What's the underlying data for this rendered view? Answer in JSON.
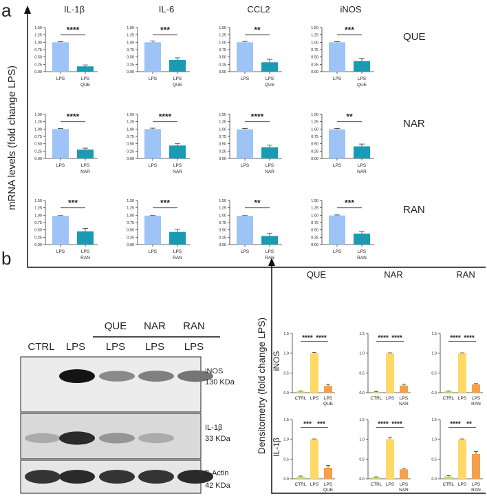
{
  "panel_a": {
    "label": "a",
    "ylabel": "mRNA levels  (fold change LPS)",
    "columns": [
      "IL-1β",
      "IL-6",
      "CCL2",
      "iNOS"
    ],
    "rows": [
      "QUE",
      "NAR",
      "RAN"
    ],
    "yticks": [
      "0.00",
      "0.25",
      "0.50",
      "0.75",
      "1.00",
      "1.25",
      "1.50"
    ]
  },
  "panel_b": {
    "label": "b",
    "blot": {
      "top_labels": [
        "QUE",
        "NAR",
        "RAN"
      ],
      "lane_labels": [
        "CTRL",
        "LPS",
        "LPS",
        "LPS",
        "LPS"
      ],
      "bands": [
        {
          "name": "iNOS",
          "size": "130 KDa"
        },
        {
          "name": "IL-1β",
          "size": "33 KDa"
        },
        {
          "name": "β-Actin",
          "size": "42 KDa"
        }
      ]
    },
    "ylabel": "Densitometry (fold change LPS)",
    "columns": [
      "QUE",
      "NAR",
      "RAN"
    ],
    "rows": [
      "iNOS",
      "IL-1β"
    ],
    "yticks": [
      "0.0",
      "0.5",
      "1.0",
      "1.5"
    ]
  },
  "chart_data": [
    {
      "type": "bar",
      "panel": "a",
      "ylim": [
        0,
        1.5
      ],
      "colors": {
        "LPS": "#9dc3f7",
        "treated": "#1a9bb3"
      },
      "charts": [
        {
          "gene": "IL-1β",
          "treatment": "QUE",
          "categories": [
            "LPS",
            "LPS QUE"
          ],
          "values": [
            1.0,
            0.18
          ],
          "errors": [
            0.02,
            0.05
          ],
          "sig": "****"
        },
        {
          "gene": "IL-6",
          "treatment": "QUE",
          "categories": [
            "LPS",
            "LPS QUE"
          ],
          "values": [
            1.0,
            0.4
          ],
          "errors": [
            0.04,
            0.07
          ],
          "sig": "***"
        },
        {
          "gene": "CCL2",
          "treatment": "QUE",
          "categories": [
            "LPS",
            "LPS QUE"
          ],
          "values": [
            1.0,
            0.32
          ],
          "errors": [
            0.03,
            0.1
          ],
          "sig": "**"
        },
        {
          "gene": "iNOS",
          "treatment": "QUE",
          "categories": [
            "LPS",
            "LPS QUE"
          ],
          "values": [
            1.0,
            0.36
          ],
          "errors": [
            0.02,
            0.09
          ],
          "sig": "***"
        },
        {
          "gene": "IL-1β",
          "treatment": "NAR",
          "categories": [
            "LPS",
            "LPS NAR"
          ],
          "values": [
            1.0,
            0.3
          ],
          "errors": [
            0.02,
            0.05
          ],
          "sig": "****"
        },
        {
          "gene": "IL-6",
          "treatment": "NAR",
          "categories": [
            "LPS",
            "LPS NAR"
          ],
          "values": [
            1.0,
            0.44
          ],
          "errors": [
            0.03,
            0.07
          ],
          "sig": "****"
        },
        {
          "gene": "CCL2",
          "treatment": "NAR",
          "categories": [
            "LPS",
            "LPS NAR"
          ],
          "values": [
            0.99,
            0.38
          ],
          "errors": [
            0.03,
            0.07
          ],
          "sig": "****"
        },
        {
          "gene": "iNOS",
          "treatment": "NAR",
          "categories": [
            "LPS",
            "LPS NAR"
          ],
          "values": [
            0.99,
            0.41
          ],
          "errors": [
            0.03,
            0.08
          ],
          "sig": "**"
        },
        {
          "gene": "IL-1β",
          "treatment": "RAN",
          "categories": [
            "LPS",
            "LPS RAN"
          ],
          "values": [
            0.97,
            0.45
          ],
          "errors": [
            0.02,
            0.1
          ],
          "sig": "***"
        },
        {
          "gene": "IL-6",
          "treatment": "RAN",
          "categories": [
            "LPS",
            "LPS RAN"
          ],
          "values": [
            0.98,
            0.43
          ],
          "errors": [
            0.02,
            0.09
          ],
          "sig": "***"
        },
        {
          "gene": "CCL2",
          "treatment": "RAN",
          "categories": [
            "LPS",
            "LPS RAN"
          ],
          "values": [
            0.97,
            0.29
          ],
          "errors": [
            0.02,
            0.1
          ],
          "sig": "**"
        },
        {
          "gene": "iNOS",
          "treatment": "RAN",
          "categories": [
            "LPS",
            "LPS RAN"
          ],
          "values": [
            0.99,
            0.37
          ],
          "errors": [
            0.02,
            0.08
          ],
          "sig": "***"
        }
      ]
    },
    {
      "type": "bar",
      "panel": "b",
      "ylim": [
        0,
        1.5
      ],
      "colors": {
        "CTRL": "#c3dc6e",
        "LPS": "#ffd966",
        "treated": "#f5a04a"
      },
      "charts": [
        {
          "protein": "iNOS",
          "treatment": "QUE",
          "categories": [
            "CTRL",
            "LPS",
            "LPS QUE"
          ],
          "values": [
            0.03,
            1.0,
            0.17
          ],
          "errors": [
            0.01,
            0.02,
            0.04
          ],
          "sigs": [
            "****",
            "****"
          ]
        },
        {
          "protein": "iNOS",
          "treatment": "NAR",
          "categories": [
            "CTRL",
            "LPS",
            "LPS NAR"
          ],
          "values": [
            0.02,
            1.0,
            0.18
          ],
          "errors": [
            0.01,
            0.01,
            0.03
          ],
          "sigs": [
            "****",
            "****"
          ]
        },
        {
          "protein": "iNOS",
          "treatment": "RAN",
          "categories": [
            "CTRL",
            "LPS",
            "LPS RAN"
          ],
          "values": [
            0.03,
            1.0,
            0.21
          ],
          "errors": [
            0.01,
            0.01,
            0.02
          ],
          "sigs": [
            "****",
            "****"
          ]
        },
        {
          "protein": "IL-1β",
          "treatment": "QUE",
          "categories": [
            "CTRL",
            "LPS",
            "LPS QUE"
          ],
          "values": [
            0.05,
            1.0,
            0.28
          ],
          "errors": [
            0.02,
            0.01,
            0.06
          ],
          "sigs": [
            "***",
            "***"
          ]
        },
        {
          "protein": "IL-1β",
          "treatment": "NAR",
          "categories": [
            "CTRL",
            "LPS",
            "LPS NAR"
          ],
          "values": [
            0.04,
            1.0,
            0.24
          ],
          "errors": [
            0.01,
            0.05,
            0.03
          ],
          "sigs": [
            "****",
            "****"
          ]
        },
        {
          "protein": "IL-1β",
          "treatment": "RAN",
          "categories": [
            "CTRL",
            "LPS",
            "LPS RAN"
          ],
          "values": [
            0.06,
            1.0,
            0.63
          ],
          "errors": [
            0.02,
            0.01,
            0.06
          ],
          "sigs": [
            "****",
            "**"
          ]
        }
      ]
    }
  ]
}
